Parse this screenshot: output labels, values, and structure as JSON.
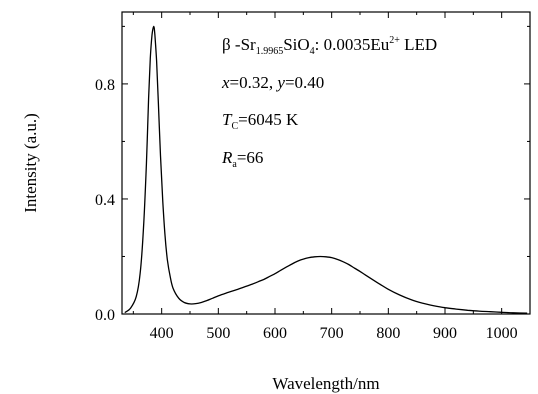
{
  "chart_data": {
    "type": "line",
    "xlabel": "Wavelength/nm",
    "ylabel": "Intensity (a.u.)",
    "xlim": [
      330,
      1050
    ],
    "ylim": [
      0.0,
      1.05
    ],
    "x_ticks": [
      400,
      500,
      600,
      700,
      800,
      900,
      1000
    ],
    "x_tick_labels": [
      "400",
      "500",
      "600",
      "700",
      "800",
      "900",
      "1000"
    ],
    "y_ticks": [
      0.0,
      0.4,
      0.8
    ],
    "y_tick_labels": [
      "0.0",
      "0.4",
      "0.8"
    ],
    "grid": false,
    "legend": "none",
    "annotations": {
      "formula": {
        "beta": "β",
        "part1": " -Sr",
        "sub1": "1.9965",
        "part2": "SiO",
        "sub2": "4",
        "part3": ": 0.0035Eu",
        "sup": "2+",
        "part4": " LED"
      },
      "coords": {
        "x_var": "x",
        "x_val": "=0.32, ",
        "y_var": "y",
        "y_val": "=0.40"
      },
      "temp": {
        "var": "T",
        "sub": "C",
        "val": "=6045 K"
      },
      "cri": {
        "var": "R",
        "sub": "a",
        "val": "=66"
      }
    },
    "series": [
      {
        "color": "#000000",
        "x": [
          335,
          345,
          355,
          362,
          368,
          373,
          377,
          380,
          383,
          386,
          388,
          391,
          394,
          398,
          402,
          406,
          410,
          415,
          420,
          430,
          440,
          450,
          460,
          470,
          480,
          490,
          500,
          510,
          520,
          530,
          540,
          550,
          560,
          570,
          580,
          590,
          600,
          610,
          620,
          630,
          640,
          650,
          660,
          670,
          680,
          690,
          700,
          710,
          720,
          730,
          740,
          750,
          760,
          780,
          800,
          820,
          840,
          860,
          880,
          900,
          920,
          940,
          960,
          980,
          1000,
          1020,
          1045
        ],
        "y": [
          0.005,
          0.02,
          0.06,
          0.14,
          0.3,
          0.52,
          0.75,
          0.89,
          0.97,
          1.0,
          0.97,
          0.88,
          0.74,
          0.55,
          0.39,
          0.27,
          0.19,
          0.13,
          0.09,
          0.055,
          0.04,
          0.035,
          0.036,
          0.04,
          0.047,
          0.055,
          0.063,
          0.07,
          0.077,
          0.083,
          0.09,
          0.097,
          0.104,
          0.112,
          0.12,
          0.13,
          0.14,
          0.152,
          0.163,
          0.174,
          0.184,
          0.191,
          0.196,
          0.199,
          0.2,
          0.199,
          0.196,
          0.19,
          0.182,
          0.172,
          0.16,
          0.148,
          0.135,
          0.11,
          0.086,
          0.066,
          0.05,
          0.038,
          0.029,
          0.022,
          0.017,
          0.013,
          0.01,
          0.008,
          0.006,
          0.004,
          0.003
        ]
      }
    ]
  }
}
